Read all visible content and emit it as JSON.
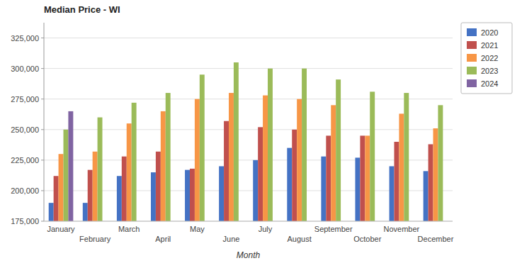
{
  "chart_data": {
    "type": "bar",
    "title": "Median Price - WI",
    "x_label": "Month",
    "categories": [
      "January",
      "February",
      "March",
      "April",
      "May",
      "June",
      "July",
      "August",
      "September",
      "October",
      "November",
      "December"
    ],
    "series": [
      {
        "name": "2020",
        "color": "#4472c4",
        "values": [
          190000,
          190000,
          212000,
          215000,
          217000,
          220000,
          225000,
          235000,
          228000,
          227000,
          220000,
          216000
        ]
      },
      {
        "name": "2021",
        "color": "#c0504d",
        "values": [
          212000,
          217000,
          228000,
          232000,
          218000,
          257000,
          252000,
          250000,
          245000,
          245000,
          240000,
          238000
        ]
      },
      {
        "name": "2022",
        "color": "#f79646",
        "values": [
          230000,
          232000,
          255000,
          265000,
          275000,
          280000,
          278000,
          275000,
          270000,
          245000,
          263000,
          251000
        ]
      },
      {
        "name": "2023",
        "color": "#9bbb59",
        "values": [
          250000,
          260000,
          272000,
          280000,
          295000,
          305000,
          300000,
          300000,
          291000,
          281000,
          280000,
          270000
        ]
      },
      {
        "name": "2024",
        "color": "#8064a2",
        "values": [
          265000,
          null,
          null,
          null,
          null,
          null,
          null,
          null,
          null,
          null,
          null,
          null
        ]
      }
    ],
    "ylim": [
      175000,
      337500
    ],
    "yticks": [
      {
        "value": 175000,
        "label": "175,000"
      },
      {
        "value": 200000,
        "label": "200,000"
      },
      {
        "value": 225000,
        "label": "225,000"
      },
      {
        "value": 250000,
        "label": "250,000"
      },
      {
        "value": 275000,
        "label": "275,000"
      },
      {
        "value": 300000,
        "label": "300,000"
      },
      {
        "value": 325000,
        "label": "325,000"
      }
    ],
    "grid": true,
    "legend": "right"
  }
}
